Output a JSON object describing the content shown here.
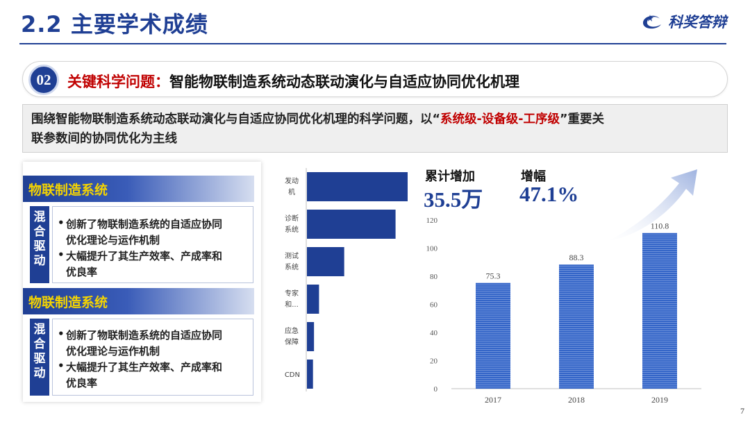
{
  "header": {
    "title": "2.2 主要学术成绩",
    "brand": "科奖答辩"
  },
  "topic": {
    "badge": "02",
    "key": "关键科学问题：",
    "text": "智能物联制造系统动态联动演化与自适应协同优化机理"
  },
  "summary": {
    "part1": "围绕智能物联制造系统动态联动演化与自适应协同优化机理的科学问题，以“",
    "highlight": "系统级-设备级-工序级",
    "part2": "”重要关",
    "line2": "联参数间的协同优化为主线"
  },
  "left_panel": {
    "sections": [
      {
        "title": "物联制造系统",
        "tag": [
          "混",
          "合",
          "驱",
          "动"
        ],
        "bullets": [
          {
            "dot": "•",
            "lines": [
              "创新了物联制造系统的自适应协同",
              "优化理论与运作机制"
            ]
          },
          {
            "dot": "•",
            "lines": [
              "大幅提升了其生产效率、产成率和",
              "优良率"
            ]
          }
        ]
      },
      {
        "title": "物联制造系统",
        "tag": [
          "混",
          "合",
          "驱",
          "动"
        ],
        "bullets": [
          {
            "dot": "•",
            "lines": [
              "创新了物联制造系统的自适应协同",
              "优化理论与运作机制"
            ]
          },
          {
            "dot": "•",
            "lines": [
              "大幅提升了其生产效率、产成率和",
              "优良率"
            ]
          }
        ]
      }
    ]
  },
  "stats": {
    "cumulative_label": "累计增加",
    "cumulative_value": "35.5万",
    "growth_label": "增幅",
    "growth_value": "47.1%"
  },
  "chart_data": [
    {
      "type": "bar",
      "orientation": "horizontal",
      "categories": [
        [
          "发动",
          "机"
        ],
        [
          "诊断",
          "系统"
        ],
        [
          "测试",
          "系统"
        ],
        [
          "专家",
          "和..."
        ],
        [
          "应急",
          "保障"
        ],
        [
          "CDN"
        ]
      ],
      "values": [
        100,
        88,
        37,
        12,
        7,
        6
      ],
      "color": "#1f3f94",
      "grid": false
    },
    {
      "type": "bar",
      "categories": [
        "2017",
        "2018",
        "2019"
      ],
      "values": [
        75.3,
        88.3,
        110.8
      ],
      "yticks": [
        0,
        20,
        40,
        60,
        80,
        100,
        120
      ],
      "ylim": [
        0,
        120
      ],
      "color": "#2f5fbf",
      "grid": false,
      "data_labels": true
    }
  ],
  "footer": {
    "page": "7"
  }
}
